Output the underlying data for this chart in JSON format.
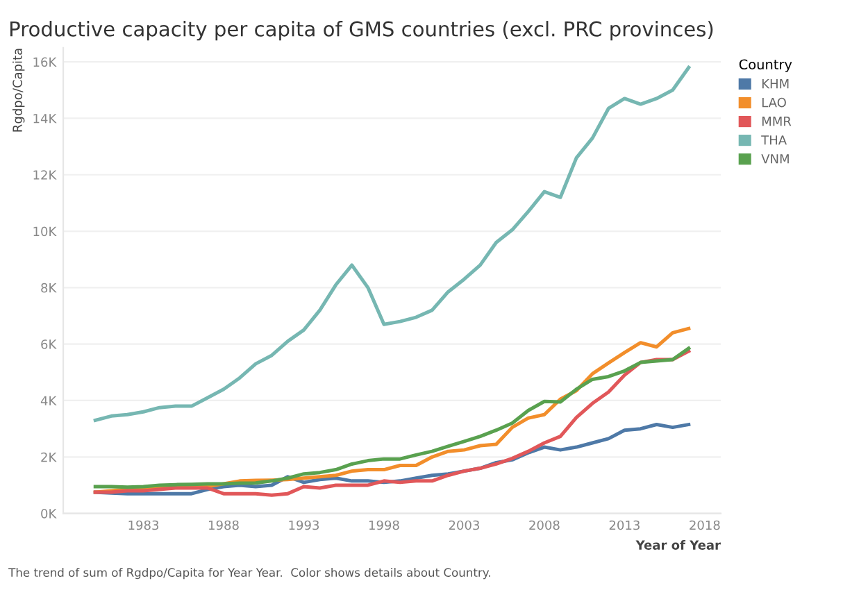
{
  "chart_data": {
    "type": "line",
    "title": "Productive capacity per capita of GMS countries (excl. PRC provinces)",
    "xlabel": "Year of Year",
    "ylabel": "Rgdpo/Capita",
    "legend_title": "Country",
    "legend": "top right",
    "x": [
      1980,
      1981,
      1982,
      1983,
      1984,
      1985,
      1986,
      1987,
      1988,
      1989,
      1990,
      1991,
      1992,
      1993,
      1994,
      1995,
      1996,
      1997,
      1998,
      1999,
      2000,
      2001,
      2002,
      2003,
      2004,
      2005,
      2006,
      2007,
      2008,
      2009,
      2010,
      2011,
      2012,
      2013,
      2014,
      2015,
      2016,
      2017
    ],
    "series": [
      {
        "name": "KHM",
        "color": "#4e79a7",
        "values": [
          750,
          720,
          700,
          700,
          700,
          700,
          700,
          850,
          950,
          1000,
          950,
          1000,
          1300,
          1100,
          1200,
          1250,
          1150,
          1150,
          1100,
          1150,
          1250,
          1350,
          1400,
          1500,
          1600,
          1800,
          1900,
          2150,
          2350,
          2250,
          2350,
          2500,
          2650,
          2950,
          3000,
          3150,
          3050,
          3150
        ]
      },
      {
        "name": "LAO",
        "color": "#f28e2b",
        "values": [
          750,
          800,
          850,
          900,
          900,
          930,
          950,
          950,
          1050,
          1150,
          1170,
          1180,
          1200,
          1250,
          1300,
          1350,
          1500,
          1550,
          1550,
          1700,
          1700,
          2000,
          2200,
          2250,
          2400,
          2450,
          3050,
          3380,
          3500,
          4050,
          4350,
          4950,
          5330,
          5700,
          6050,
          5900,
          6400,
          6550
        ]
      },
      {
        "name": "MMR",
        "color": "#e15759",
        "values": [
          750,
          750,
          800,
          800,
          850,
          900,
          900,
          900,
          700,
          700,
          700,
          650,
          700,
          950,
          900,
          1000,
          1000,
          1000,
          1150,
          1100,
          1150,
          1150,
          1350,
          1500,
          1600,
          1750,
          1950,
          2200,
          2500,
          2730,
          3400,
          3900,
          4300,
          4900,
          5350,
          5450,
          5450,
          5750
        ]
      },
      {
        "name": "THA",
        "color": "#76b7b2",
        "values": [
          3300,
          3450,
          3500,
          3600,
          3750,
          3800,
          3800,
          4100,
          4400,
          4800,
          5300,
          5600,
          6100,
          6500,
          7200,
          8100,
          8800,
          8000,
          6700,
          6800,
          6950,
          7200,
          7850,
          8300,
          8800,
          9600,
          10050,
          10700,
          11400,
          11200,
          12600,
          13300,
          14350,
          14700,
          14500,
          14700,
          15000,
          15800
        ]
      },
      {
        "name": "VNM",
        "color": "#59a14f",
        "values": [
          950,
          950,
          930,
          950,
          1000,
          1020,
          1030,
          1050,
          1050,
          1070,
          1080,
          1150,
          1250,
          1400,
          1450,
          1550,
          1750,
          1870,
          1930,
          1930,
          2070,
          2200,
          2380,
          2550,
          2730,
          2950,
          3200,
          3650,
          3970,
          3950,
          4400,
          4750,
          4850,
          5050,
          5350,
          5400,
          5450,
          5850
        ]
      }
    ],
    "xlim": [
      1978,
      2019
    ],
    "xticks": [
      1983,
      1988,
      1993,
      1998,
      2003,
      2008,
      2013,
      2018
    ],
    "ylim": [
      0,
      16500
    ],
    "yticks": [
      {
        "value": 0,
        "label": "0K"
      },
      {
        "value": 2000,
        "label": "2K"
      },
      {
        "value": 4000,
        "label": "4K"
      },
      {
        "value": 6000,
        "label": "6K"
      },
      {
        "value": 8000,
        "label": "8K"
      },
      {
        "value": 10000,
        "label": "10K"
      },
      {
        "value": 12000,
        "label": "12K"
      },
      {
        "value": 14000,
        "label": "14K"
      },
      {
        "value": 16000,
        "label": "16K"
      }
    ],
    "grid": "y",
    "marker": "none",
    "line_style": "solid",
    "annotations": [
      "The trend of sum of Rgdpo/Capita for Year Year.  Color shows details about Country."
    ]
  }
}
